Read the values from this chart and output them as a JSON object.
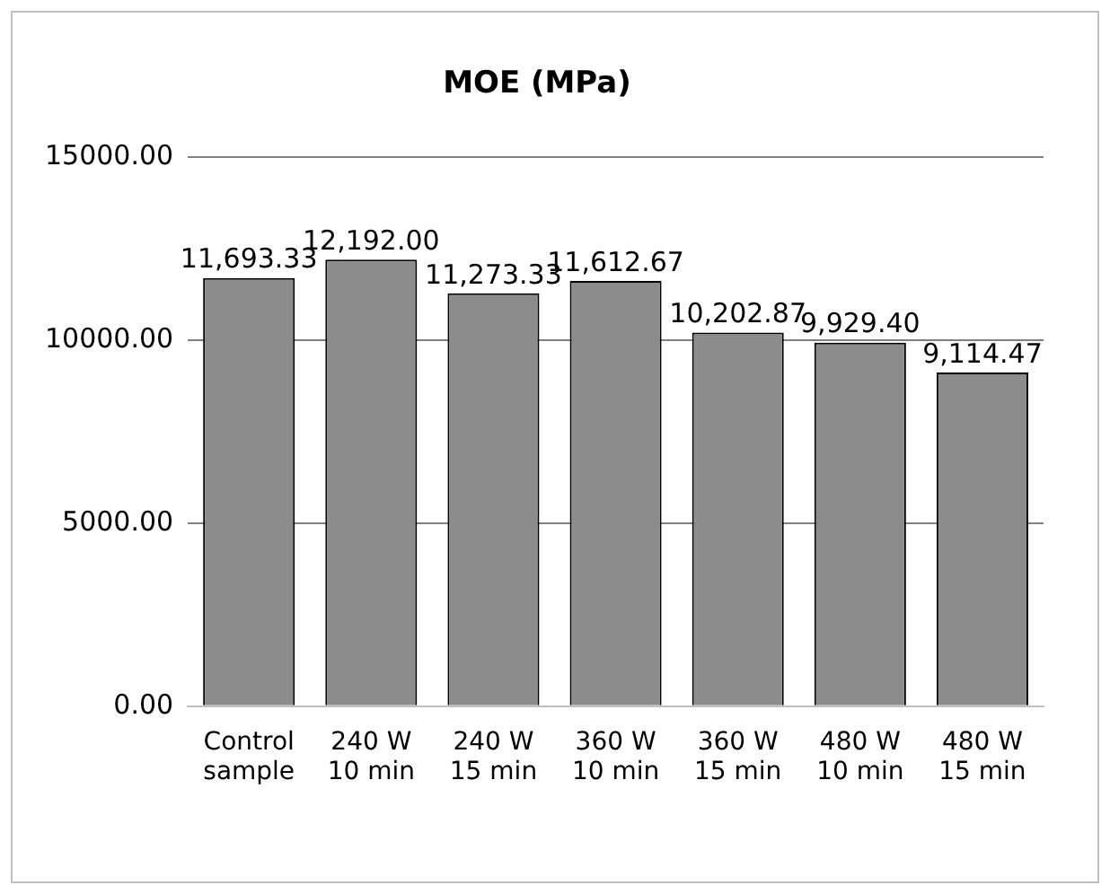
{
  "chart_data": {
    "type": "bar",
    "title": "MOE (MPa)",
    "categories": [
      "Control sample",
      "240 W 10 min",
      "240 W 15 min",
      "360 W 10 min",
      "360 W 15 min",
      "480 W 10 min",
      "480 W 15 min"
    ],
    "values": [
      11693.33,
      12192.0,
      11273.33,
      11612.67,
      10202.87,
      9929.4,
      9114.47
    ],
    "value_labels": [
      "11,693.33",
      "12,192.00",
      "11,273.33",
      "11,612.67",
      "10,202.87",
      "9,929.40",
      "9,114.47"
    ],
    "color": "#8c8c8c",
    "ylim": [
      0,
      15000
    ],
    "yticks": [
      {
        "value": 0,
        "label": "0.00"
      },
      {
        "value": 5000,
        "label": "5000.00"
      },
      {
        "value": 10000,
        "label": "10000.00"
      },
      {
        "value": 15000,
        "label": "15000.00"
      }
    ],
    "grid": "y",
    "legend": false
  }
}
